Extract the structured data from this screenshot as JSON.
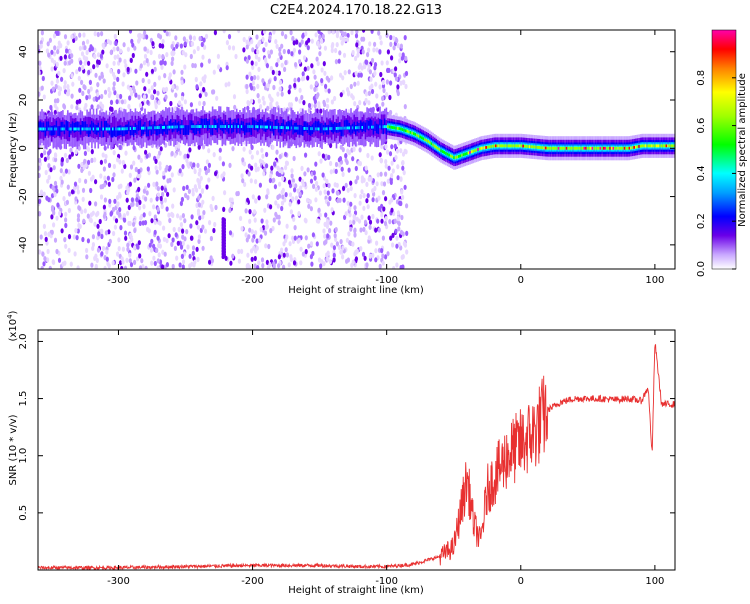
{
  "title": "C2E4.2024.170.18.22.G13",
  "chart_data": [
    {
      "type": "heatmap",
      "xlabel": "Height of straight line (km)",
      "ylabel": "Frequency (Hz)",
      "xlim": [
        -360,
        115
      ],
      "ylim": [
        -50,
        49
      ],
      "x_ticks": [
        -300,
        -200,
        -100,
        0,
        100
      ],
      "y_ticks": [
        -40,
        -20,
        0,
        20,
        40
      ],
      "colorbar": {
        "label": "Normalized spectral amplitude",
        "range": [
          0,
          1
        ],
        "ticks": [
          0.0,
          0.2,
          0.4,
          0.6,
          0.8
        ]
      },
      "ridge": {
        "x": [
          -360,
          -300,
          -250,
          -200,
          -150,
          -100,
          -90,
          -80,
          -70,
          -60,
          -50,
          -45,
          -40,
          -30,
          -20,
          -10,
          0,
          20,
          40,
          60,
          80,
          90,
          100,
          115
        ],
        "y": [
          8,
          8,
          9,
          9,
          8,
          9,
          8,
          6,
          3,
          -1,
          -4,
          -3,
          -2,
          0,
          1,
          1,
          1,
          0,
          0,
          0,
          0,
          1,
          1,
          1
        ]
      },
      "noise_region_x": [
        -360,
        -100
      ],
      "colors": [
        "#ffffff",
        "#e8d8ff",
        "#c9a8ff",
        "#9a5cff",
        "#6a00e8",
        "#0000ff",
        "#00a0ff",
        "#00ffff",
        "#00ff00",
        "#a0ff00",
        "#ffff00",
        "#ff8000",
        "#ff0000",
        "#ff00aa"
      ]
    },
    {
      "type": "line",
      "xlabel": "Height of straight line (km)",
      "ylabel": "SNR (10 * v/v)",
      "y_exponent_label": "(x10",
      "y_exponent_sup": "4",
      "y_exponent_close": ")",
      "xlim": [
        -360,
        115
      ],
      "ylim": [
        0,
        2.1
      ],
      "x_ticks": [
        -300,
        -200,
        -100,
        0,
        100
      ],
      "y_ticks": [
        0.5,
        1.0,
        1.5,
        2.0
      ],
      "y_unit_scale": 10000,
      "series": [
        {
          "color": "#e83030",
          "x": [
            -360,
            -300,
            -250,
            -200,
            -150,
            -120,
            -100,
            -80,
            -60,
            -50,
            -45,
            -40,
            -35,
            -30,
            -25,
            -20,
            -15,
            -10,
            -5,
            0,
            5,
            10,
            15,
            20,
            30,
            40,
            50,
            60,
            70,
            80,
            90,
            95,
            98,
            100,
            105,
            110,
            115
          ],
          "y": [
            0.02,
            0.02,
            0.03,
            0.04,
            0.04,
            0.03,
            0.03,
            0.05,
            0.12,
            0.2,
            0.5,
            0.8,
            0.4,
            0.25,
            0.7,
            0.8,
            0.9,
            1.0,
            1.05,
            1.1,
            1.15,
            1.2,
            1.3,
            1.4,
            1.47,
            1.5,
            1.5,
            1.5,
            1.49,
            1.5,
            1.48,
            1.6,
            1.0,
            2.0,
            1.45,
            1.45,
            1.45
          ]
        }
      ]
    }
  ]
}
